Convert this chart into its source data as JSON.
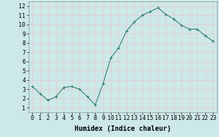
{
  "x": [
    0,
    1,
    2,
    3,
    4,
    5,
    6,
    7,
    8,
    9,
    10,
    11,
    12,
    13,
    14,
    15,
    16,
    17,
    18,
    19,
    20,
    21,
    22,
    23
  ],
  "y": [
    3.3,
    2.5,
    1.8,
    2.2,
    3.2,
    3.3,
    3.0,
    2.2,
    1.3,
    3.6,
    6.4,
    7.5,
    9.3,
    10.3,
    11.0,
    11.4,
    11.8,
    11.1,
    10.6,
    9.9,
    9.5,
    9.5,
    8.8,
    8.2
  ],
  "line_color": "#2e7d6e",
  "marker": "+",
  "marker_size": 3,
  "bg_color": "#cce8e8",
  "grid_color": "#e8c8c8",
  "xlabel": "Humidex (Indice chaleur)",
  "xlim": [
    -0.5,
    23.5
  ],
  "ylim": [
    0.5,
    12.5
  ],
  "yticks": [
    1,
    2,
    3,
    4,
    5,
    6,
    7,
    8,
    9,
    10,
    11,
    12
  ],
  "xticks": [
    0,
    1,
    2,
    3,
    4,
    5,
    6,
    7,
    8,
    9,
    10,
    11,
    12,
    13,
    14,
    15,
    16,
    17,
    18,
    19,
    20,
    21,
    22,
    23
  ],
  "xlabel_fontsize": 7,
  "tick_fontsize": 6
}
